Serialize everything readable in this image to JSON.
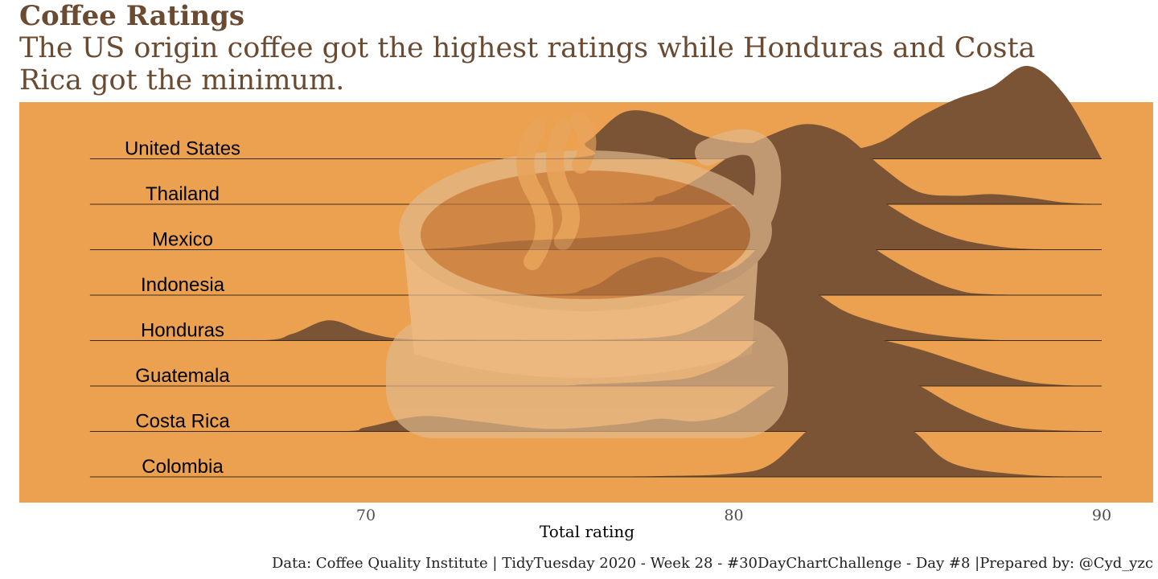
{
  "title": "Coffee Ratings",
  "subtitle": "The US origin coffee got the highest ratings while Honduras and Costa Rica got the minimum.",
  "caption": "Data: Coffee Quality Institute | TidyTuesday 2020 - Week 28 - #30DayChartChallenge - Day #8 |Prepared by: @Cyd_yzc",
  "colors": {
    "panel": "#eba14f",
    "ridge_fill": "#7a5435",
    "title": "#6b4a32",
    "cup_rim": "#e2b98e",
    "cup_body": "#efc396",
    "coffee": "#c47a3f",
    "steam": "#e9a560"
  },
  "decoration": {
    "background_image": "coffee-cup-icon"
  },
  "chart_data": {
    "type": "ridgeline",
    "xlabel": "Total rating",
    "xlim": [
      62.5,
      90
    ],
    "xticks": [
      70,
      80,
      90
    ],
    "categories": [
      "Colombia",
      "Costa Rica",
      "Guatemala",
      "Honduras",
      "Indonesia",
      "Mexico",
      "Thailand",
      "United States"
    ],
    "series": [
      {
        "name": "Colombia",
        "x": [
          62.5,
          74,
          78,
          80,
          81,
          82,
          83,
          83.5,
          84,
          85,
          86,
          88,
          90
        ],
        "y": [
          0,
          0,
          0.01,
          0.04,
          0.15,
          0.55,
          0.92,
          0.97,
          0.9,
          0.5,
          0.15,
          0.02,
          0
        ]
      },
      {
        "name": "Costa Rica",
        "x": [
          62.5,
          69,
          70,
          71.5,
          73,
          75,
          77,
          78,
          79,
          80,
          81,
          82,
          83,
          84,
          85,
          86,
          87,
          88,
          90
        ],
        "y": [
          0,
          0,
          0.05,
          0.18,
          0.12,
          0.03,
          0.09,
          0.15,
          0.12,
          0.22,
          0.5,
          0.72,
          0.78,
          0.72,
          0.55,
          0.3,
          0.12,
          0.03,
          0
        ]
      },
      {
        "name": "Guatemala",
        "x": [
          62.5,
          74,
          76,
          78,
          79,
          80,
          81,
          82,
          83,
          84,
          85,
          86,
          87,
          88,
          89,
          90
        ],
        "y": [
          0,
          0,
          0.02,
          0.06,
          0.12,
          0.32,
          0.65,
          0.72,
          0.66,
          0.55,
          0.44,
          0.3,
          0.16,
          0.05,
          0.01,
          0
        ]
      },
      {
        "name": "Honduras",
        "x": [
          62.5,
          67,
          68,
          69,
          70,
          71,
          73,
          76,
          78,
          79,
          80,
          81,
          82,
          83,
          84,
          85,
          86,
          87,
          88,
          90
        ],
        "y": [
          0,
          0,
          0.08,
          0.24,
          0.1,
          0.02,
          0.01,
          0.01,
          0.04,
          0.15,
          0.42,
          0.75,
          0.62,
          0.35,
          0.2,
          0.1,
          0.04,
          0.01,
          0,
          0
        ]
      },
      {
        "name": "Indonesia",
        "x": [
          62.5,
          74,
          76,
          77,
          78,
          79,
          80,
          81,
          82,
          83,
          84,
          85,
          86,
          87,
          90
        ],
        "y": [
          0,
          0,
          0.08,
          0.32,
          0.45,
          0.28,
          0.32,
          0.7,
          1.0,
          0.82,
          0.5,
          0.25,
          0.07,
          0.01,
          0
        ]
      },
      {
        "name": "Mexico",
        "x": [
          62.5,
          71,
          74,
          76,
          78,
          79,
          80,
          81,
          82,
          83,
          84,
          85,
          86,
          87,
          88,
          90
        ],
        "y": [
          0,
          0,
          0.1,
          0.14,
          0.22,
          0.34,
          0.52,
          0.74,
          0.9,
          0.82,
          0.58,
          0.32,
          0.14,
          0.05,
          0.01,
          0
        ]
      },
      {
        "name": "Thailand",
        "x": [
          62.5,
          76,
          78,
          79,
          80,
          81,
          82,
          83,
          84,
          85,
          86,
          87,
          88,
          89,
          90
        ],
        "y": [
          0,
          0,
          0.1,
          0.3,
          0.6,
          0.82,
          0.95,
          0.82,
          0.45,
          0.15,
          0.1,
          0.12,
          0.08,
          0.02,
          0
        ]
      },
      {
        "name": "United States",
        "x": [
          62.5,
          75,
          76,
          77,
          78,
          79,
          80,
          81,
          82,
          83,
          84,
          85,
          86,
          87,
          88,
          89,
          90
        ],
        "y": [
          0,
          0,
          0.2,
          0.55,
          0.52,
          0.3,
          0.2,
          0.18,
          0.12,
          0.1,
          0.2,
          0.48,
          0.7,
          0.85,
          1.1,
          0.75,
          0
        ]
      }
    ]
  }
}
